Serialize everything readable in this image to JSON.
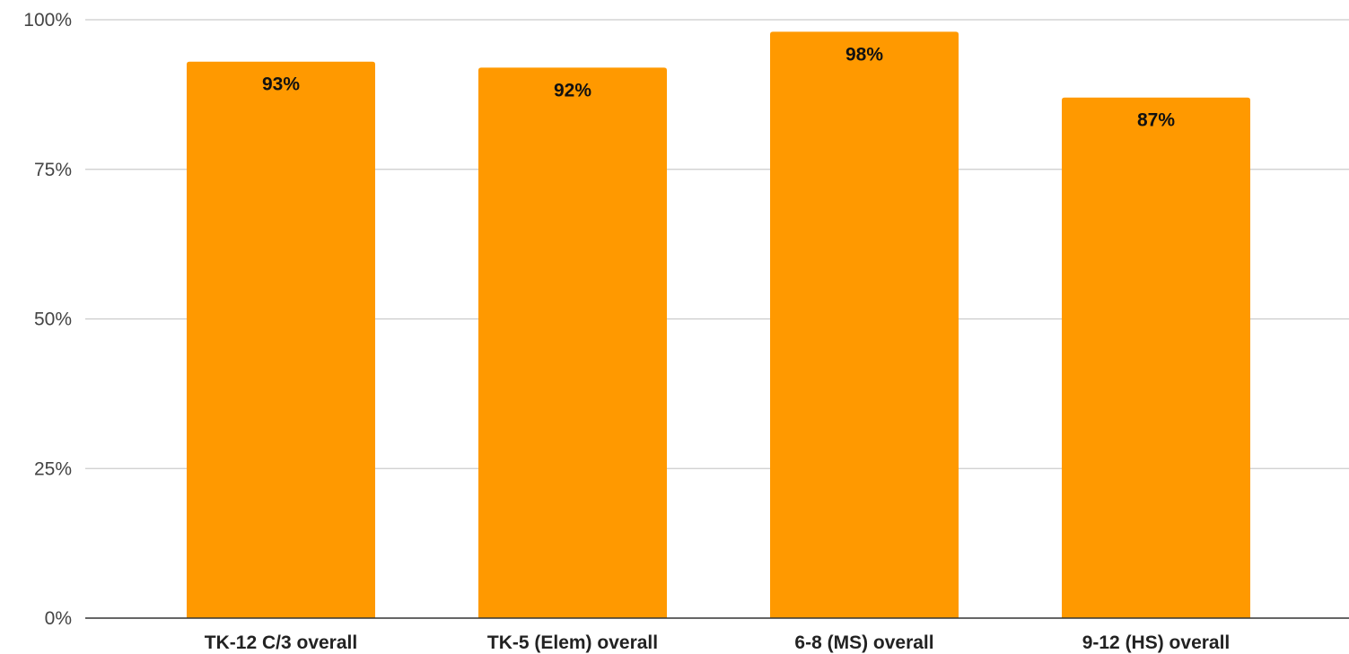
{
  "chart_data": {
    "type": "bar",
    "title": "",
    "xlabel": "",
    "ylabel": "",
    "categories": [
      "TK-12 C/3 overall",
      "TK-5 (Elem) overall",
      "6-8 (MS) overall",
      "9-12 (HS) overall"
    ],
    "values": [
      93,
      92,
      98,
      87
    ],
    "data_labels": [
      "93%",
      "92%",
      "98%",
      "87%"
    ],
    "y_ticks": [
      0,
      25,
      50,
      75,
      100
    ],
    "y_tick_labels": [
      "0%",
      "25%",
      "50%",
      "75%",
      "100%"
    ],
    "ylim": [
      0,
      100
    ],
    "grid": true,
    "legend": "none",
    "bar_color": "#ff9900"
  }
}
